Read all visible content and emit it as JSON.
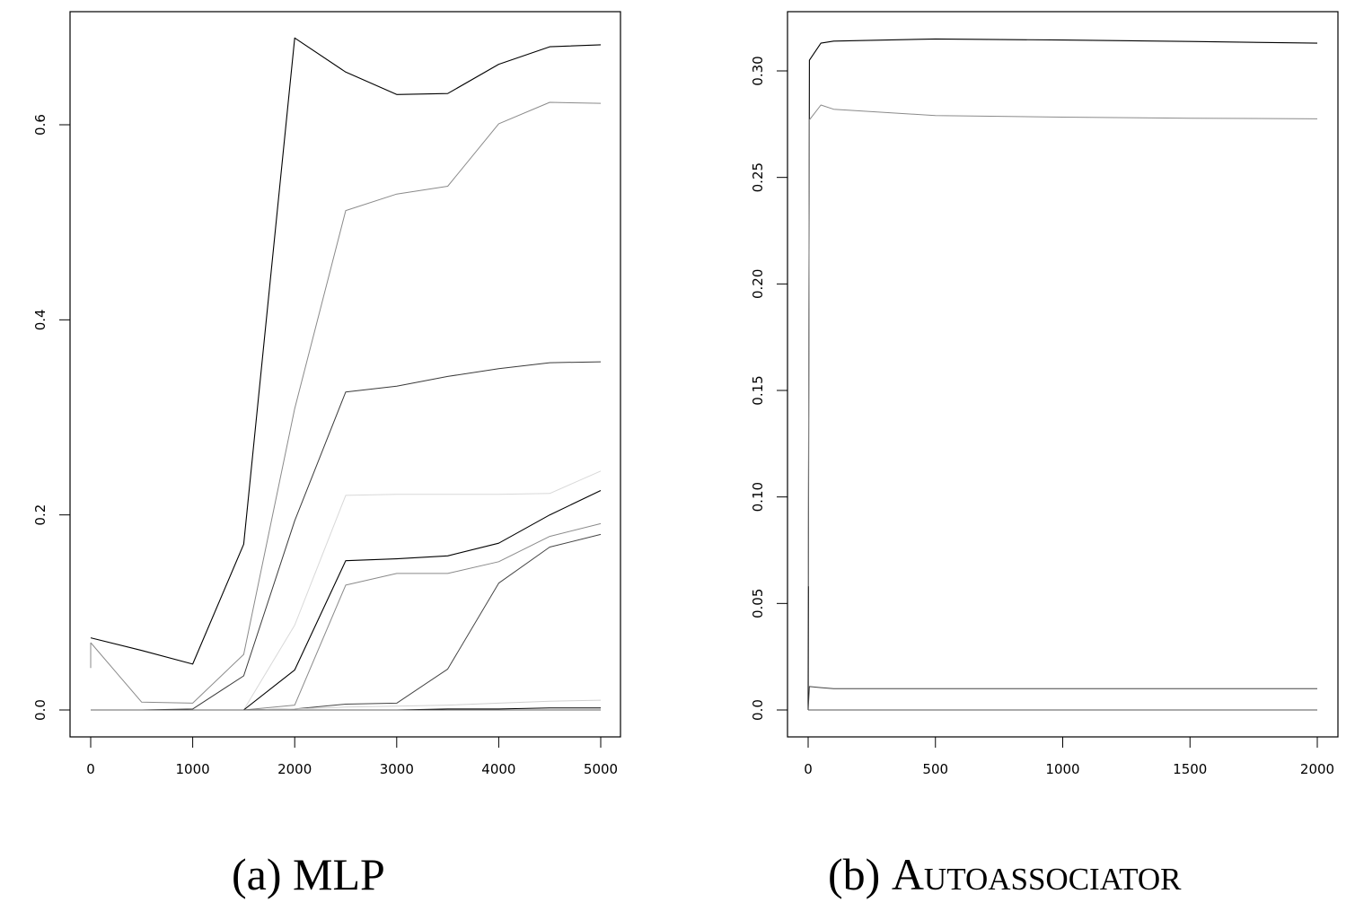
{
  "figure": {
    "panels": [
      {
        "caption_prefix": "(a)",
        "caption_title": "MLP"
      },
      {
        "caption_prefix": "(b)",
        "caption_title": "Autoassociator"
      }
    ]
  },
  "chart_data": [
    {
      "type": "line",
      "title": "(a) MLP",
      "xlabel": "",
      "ylabel": "",
      "xlim": [
        -200,
        5200
      ],
      "ylim": [
        -0.028,
        0.717
      ],
      "xticks": [
        0,
        1000,
        2000,
        3000,
        4000,
        5000
      ],
      "xtick_labels": [
        "0",
        "1000",
        "2000",
        "3000",
        "4000",
        "5000"
      ],
      "yticks": [
        0.0,
        0.2,
        0.4,
        0.6
      ],
      "ytick_labels": [
        "0.0",
        "0.2",
        "0.4",
        "0.6"
      ],
      "grid": false,
      "legend": null,
      "x": [
        0,
        500,
        1000,
        1500,
        2000,
        2500,
        3000,
        3500,
        4000,
        4500,
        5000
      ],
      "series": [
        {
          "name": "series1",
          "color": "#000000",
          "width": 1.1,
          "values": [
            0.074,
            0.061,
            0.047,
            0.17,
            0.689,
            0.654,
            0.631,
            0.632,
            0.662,
            0.68,
            0.682
          ]
        },
        {
          "name": "series2",
          "color": "#8a8a8a",
          "width": 1.0,
          "values": [
            0.069,
            0.008,
            0.007,
            0.057,
            0.309,
            0.512,
            0.529,
            0.537,
            0.601,
            0.623,
            0.622
          ]
        },
        {
          "name": "series3",
          "color": "#3a3a3a",
          "width": 1.0,
          "values": [
            0.0,
            0.0,
            0.001,
            0.035,
            0.194,
            0.326,
            0.332,
            0.342,
            0.35,
            0.356,
            0.357
          ]
        },
        {
          "name": "series4",
          "color": "#d8d8d8",
          "width": 1.0,
          "values": [
            0.0,
            0.0,
            0.0,
            0.0,
            0.087,
            0.22,
            0.221,
            0.221,
            0.221,
            0.222,
            0.245
          ]
        },
        {
          "name": "series5",
          "color": "#000000",
          "width": 1.1,
          "values": [
            0.0,
            0.0,
            0.0,
            0.0,
            0.041,
            0.153,
            0.155,
            0.158,
            0.171,
            0.2,
            0.225
          ]
        },
        {
          "name": "series6",
          "color": "#8a8a8a",
          "width": 1.0,
          "values": [
            0.0,
            0.0,
            0.0,
            0.0,
            0.005,
            0.128,
            0.14,
            0.14,
            0.152,
            0.178,
            0.191
          ]
        },
        {
          "name": "series7",
          "color": "#444444",
          "width": 1.0,
          "values": [
            0.0,
            0.0,
            0.0,
            0.0,
            0.001,
            0.006,
            0.007,
            0.042,
            0.13,
            0.167,
            0.18
          ]
        },
        {
          "name": "series8",
          "color": "#d0d0d0",
          "width": 1.0,
          "values": [
            0.0,
            0.0,
            0.0,
            0.0,
            0.001,
            0.003,
            0.004,
            0.005,
            0.007,
            0.009,
            0.01
          ]
        },
        {
          "name": "series9",
          "color": "#000000",
          "width": 1.0,
          "values": [
            0.0,
            0.0,
            0.0,
            0.0,
            0.0,
            0.0,
            0.0,
            0.001,
            0.001,
            0.002,
            0.002
          ]
        },
        {
          "name": "series10",
          "color": "#666666",
          "width": 1.0,
          "values": [
            0.0,
            0.0,
            0.0,
            0.0,
            0.0,
            0.0,
            0.0,
            0.0,
            0.0,
            0.0,
            0.0
          ]
        }
      ],
      "annotations": [
        {
          "note": "series2 starts with a short vertical segment at x=0 from ~0.043 to 0.069"
        }
      ]
    },
    {
      "type": "line",
      "title": "(b) Autoassociator",
      "xlabel": "",
      "ylabel": "",
      "xlim": [
        -80,
        2080
      ],
      "ylim": [
        -0.0125,
        0.327
      ],
      "xticks": [
        0,
        500,
        1000,
        1500,
        2000
      ],
      "xtick_labels": [
        "0",
        "500",
        "1000",
        "1500",
        "2000"
      ],
      "yticks": [
        0.0,
        0.05,
        0.1,
        0.15,
        0.2,
        0.25,
        0.3
      ],
      "ytick_labels": [
        "0.0",
        "0.05",
        "0.10",
        "0.15",
        "0.20",
        "0.25",
        "0.30"
      ],
      "grid": false,
      "legend": null,
      "x": [
        0,
        5,
        50,
        100,
        500,
        1000,
        1500,
        2000
      ],
      "series": [
        {
          "name": "series1",
          "color": "#000000",
          "width": 1.1,
          "values": [
            0.0,
            0.305,
            0.313,
            0.314,
            0.315,
            0.3145,
            0.3138,
            0.313
          ]
        },
        {
          "name": "series2",
          "color": "#8a8a8a",
          "width": 1.0,
          "values": [
            0.058,
            0.277,
            0.284,
            0.282,
            0.279,
            0.2783,
            0.2778,
            0.2775
          ]
        },
        {
          "name": "series3",
          "color": "#444444",
          "width": 1.0,
          "values": [
            0.0,
            0.011,
            0.0105,
            0.01,
            0.01,
            0.01,
            0.01,
            0.01
          ]
        },
        {
          "name": "series4",
          "color": "#555555",
          "width": 1.0,
          "values": [
            0.0,
            0.0,
            0.0,
            0.0,
            0.0,
            0.0,
            0.0,
            0.0
          ]
        }
      ]
    }
  ]
}
